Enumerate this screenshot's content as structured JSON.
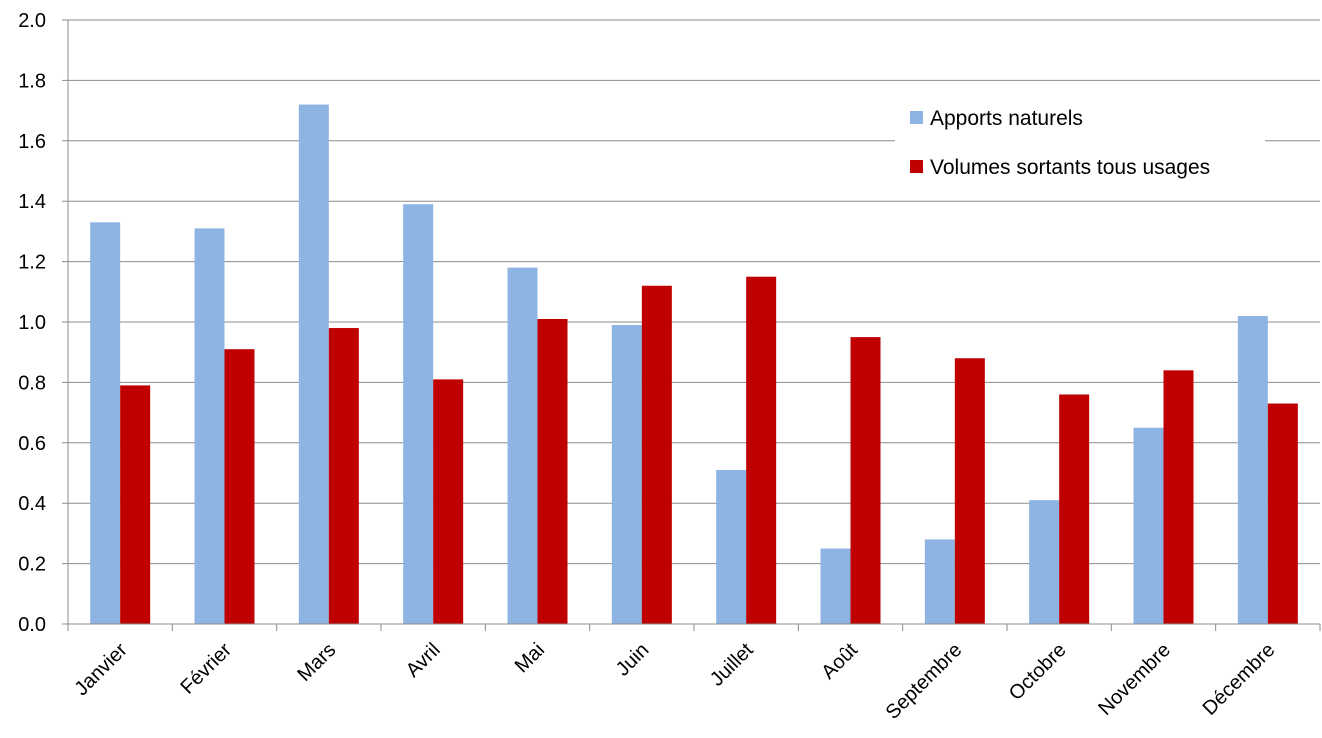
{
  "chart_data": {
    "type": "bar",
    "title": "",
    "xlabel": "",
    "ylabel": "",
    "ylim": [
      0,
      2.0
    ],
    "yticks": [
      "0.0",
      "0.2",
      "0.4",
      "0.6",
      "0.8",
      "1.0",
      "1.2",
      "1.4",
      "1.6",
      "1.8",
      "2.0"
    ],
    "grid": "horizontal",
    "legend_position": "top-right",
    "categories": [
      "Janvier",
      "Février",
      "Mars",
      "Avril",
      "Mai",
      "Juin",
      "Juillet",
      "Août",
      "Septembre",
      "Octobre",
      "Novembre",
      "Décembre"
    ],
    "series": [
      {
        "name": "Apports naturels",
        "color": "#8EB4E3",
        "values": [
          1.33,
          1.31,
          1.72,
          1.39,
          1.18,
          0.99,
          0.51,
          0.25,
          0.28,
          0.41,
          0.65,
          1.02
        ]
      },
      {
        "name": "Volumes sortants tous usages",
        "color": "#C00000",
        "values": [
          0.79,
          0.91,
          0.98,
          0.81,
          1.01,
          1.12,
          1.15,
          0.95,
          0.88,
          0.76,
          0.84,
          0.73
        ]
      }
    ]
  }
}
